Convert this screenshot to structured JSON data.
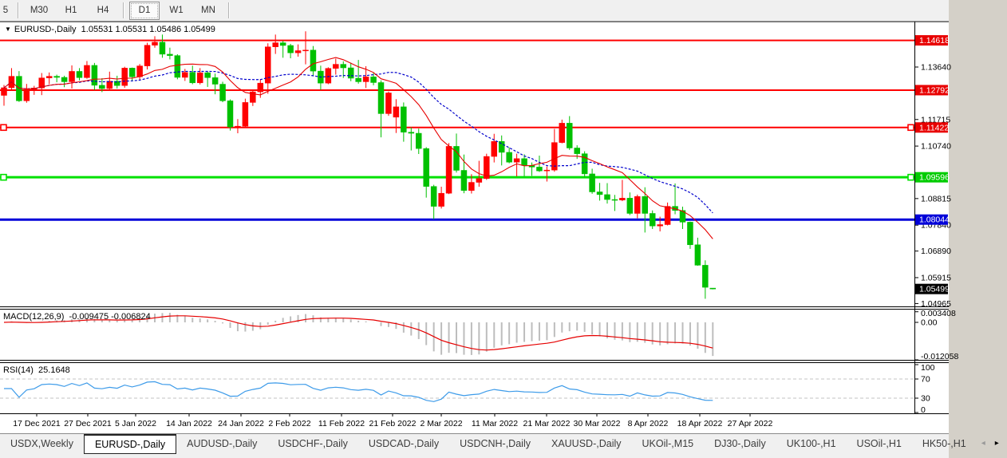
{
  "toolbar": {
    "buttons": [
      "5",
      "M30",
      "H1",
      "H4",
      "D1",
      "W1",
      "MN"
    ],
    "active": "D1",
    "separators_after": [
      "5",
      "H4",
      "MN"
    ]
  },
  "chart": {
    "title": "EURUSD-,Daily",
    "ohlc_text": "1.05531 1.05531 1.05486 1.05499"
  },
  "macd_panel": {
    "label": "MACD(12,26,9)",
    "values_text": "-0.009475 -0.006824",
    "axis_labels": [
      {
        "text": "0.003408",
        "value": 0.003408
      },
      {
        "text": "0.00",
        "value": 0.0
      },
      {
        "text": "-0.012058",
        "value": -0.012058
      }
    ]
  },
  "rsi_panel": {
    "label": "RSI(14)",
    "value_text": "25.1648",
    "axis_labels": [
      {
        "text": "100",
        "value": 100
      },
      {
        "text": "70",
        "value": 70
      },
      {
        "text": "30",
        "value": 30
      },
      {
        "text": "0",
        "value": 0
      }
    ],
    "dashed_levels": [
      70,
      30
    ]
  },
  "price_axis": {
    "plain_ticks": [
      "1.13640",
      "1.11715",
      "1.10740",
      "1.08815",
      "1.07840",
      "1.06890",
      "1.05915",
      "1.04965"
    ],
    "current_price": {
      "text": "1.05499",
      "value": 1.05499,
      "bg": "#000000",
      "fg": "#ffffff"
    }
  },
  "time_axis": {
    "ticks": [
      {
        "label": "17 Dec 2021",
        "x": 46
      },
      {
        "label": "27 Dec 2021",
        "x": 110
      },
      {
        "label": "5 Jan 2022",
        "x": 170
      },
      {
        "label": "14 Jan 2022",
        "x": 237
      },
      {
        "label": "24 Jan 2022",
        "x": 302
      },
      {
        "label": "2 Feb 2022",
        "x": 363
      },
      {
        "label": "11 Feb 2022",
        "x": 428
      },
      {
        "label": "21 Feb 2022",
        "x": 492
      },
      {
        "label": "2 Mar 2022",
        "x": 553
      },
      {
        "label": "11 Mar 2022",
        "x": 620
      },
      {
        "label": "21 Mar 2022",
        "x": 685
      },
      {
        "label": "30 Mar 2022",
        "x": 748
      },
      {
        "label": "8 Apr 2022",
        "x": 812
      },
      {
        "label": "18 Apr 2022",
        "x": 877
      },
      {
        "label": "27 Apr 2022",
        "x": 940
      }
    ]
  },
  "tabs": {
    "items": [
      "USDX,Weekly",
      "EURUSD-,Daily",
      "AUDUSD-,Daily",
      "USDCHF-,Daily",
      "USDCAD-,Daily",
      "USDCNH-,Daily",
      "XAUUSD-,Daily",
      "UKOil-,M15",
      "DJ30-,Daily",
      "UK100-,H1",
      "USOil-,H1",
      "HK50-,H1"
    ],
    "active": "EURUSD-,Daily",
    "scroll_left_arrow": "◂",
    "scroll_right_arrow": "▸"
  },
  "chart_data": {
    "type": "candlestick",
    "symbol": "EURUSD-",
    "timeframe": "Daily",
    "y_range": [
      1.049,
      1.1522
    ],
    "grid": false,
    "colors": {
      "up": "#ff0000",
      "down": "#00c000",
      "ma_fast": "#e60000",
      "ma_slow": "#0000cc",
      "macd_hist": "#bdbdbd",
      "macd_signal": "#e60000",
      "rsi_line": "#3d9be9",
      "axis_text": "#000000"
    },
    "overlays": [
      {
        "name": "ma-fast",
        "type": "sma",
        "period": 10,
        "color": "#e60000",
        "style": "solid"
      },
      {
        "name": "ma-slow",
        "type": "sma",
        "period": 20,
        "color": "#0000cc",
        "style": "dashed"
      }
    ],
    "levels": [
      {
        "value": 1.14618,
        "text": "1.14618",
        "color": "#ff0000",
        "width": 2,
        "label_bg": "#e80000",
        "handles": false
      },
      {
        "value": 1.12792,
        "text": "1.12792",
        "color": "#ff0000",
        "width": 2,
        "label_bg": "#e80000",
        "handles": false
      },
      {
        "value": 1.11422,
        "text": "1.11422",
        "color": "#ff0000",
        "width": 2,
        "label_bg": "#e80000",
        "handles": true
      },
      {
        "value": 1.09596,
        "text": "1.09596",
        "color": "#00e100",
        "width": 3,
        "label_bg": "#00cc00",
        "handles": true
      },
      {
        "value": 1.08044,
        "text": "1.08044",
        "color": "#0000d9",
        "width": 3,
        "label_bg": "#0000d9",
        "handles": false
      }
    ],
    "indicators": [
      {
        "type": "macd",
        "fast": 12,
        "slow": 26,
        "signal": 9,
        "last_main": -0.009475,
        "last_signal": -0.006824
      },
      {
        "type": "rsi",
        "period": 14,
        "last_value": 25.1648
      }
    ],
    "ohlc": [
      [
        1.126,
        1.1298,
        1.1222,
        1.1288
      ],
      [
        1.1288,
        1.136,
        1.1279,
        1.133
      ],
      [
        1.133,
        1.1349,
        1.1236,
        1.124
      ],
      [
        1.124,
        1.1302,
        1.1233,
        1.1278
      ],
      [
        1.1278,
        1.1295,
        1.1262,
        1.1287
      ],
      [
        1.1287,
        1.1342,
        1.1261,
        1.1324
      ],
      [
        1.1324,
        1.1344,
        1.1301,
        1.133
      ],
      [
        1.133,
        1.1336,
        1.1308,
        1.1326
      ],
      [
        1.1326,
        1.1332,
        1.129,
        1.131
      ],
      [
        1.131,
        1.137,
        1.1285,
        1.1348
      ],
      [
        1.1348,
        1.136,
        1.1315,
        1.1325
      ],
      [
        1.1325,
        1.1386,
        1.1321,
        1.137
      ],
      [
        1.137,
        1.1379,
        1.1279,
        1.1297
      ],
      [
        1.1297,
        1.1323,
        1.1272,
        1.1285
      ],
      [
        1.1285,
        1.1347,
        1.1278,
        1.1312
      ],
      [
        1.1312,
        1.1332,
        1.1285,
        1.1296
      ],
      [
        1.1296,
        1.1365,
        1.1288,
        1.136
      ],
      [
        1.136,
        1.1362,
        1.1313,
        1.1328
      ],
      [
        1.1328,
        1.1375,
        1.1314,
        1.1368
      ],
      [
        1.1368,
        1.1453,
        1.1355,
        1.1444
      ],
      [
        1.1444,
        1.1477,
        1.1435,
        1.1455
      ],
      [
        1.1455,
        1.1483,
        1.1398,
        1.1411
      ],
      [
        1.1411,
        1.1435,
        1.1392,
        1.1406
      ],
      [
        1.1406,
        1.1411,
        1.1319,
        1.1326
      ],
      [
        1.1326,
        1.1357,
        1.1313,
        1.1344
      ],
      [
        1.1344,
        1.1369,
        1.1301,
        1.1306
      ],
      [
        1.1306,
        1.136,
        1.13,
        1.1343
      ],
      [
        1.1343,
        1.1349,
        1.1291,
        1.1325
      ],
      [
        1.1325,
        1.134,
        1.1264,
        1.1301
      ],
      [
        1.1301,
        1.131,
        1.1235,
        1.124
      ],
      [
        1.124,
        1.1245,
        1.1131,
        1.1144
      ],
      [
        1.1144,
        1.1173,
        1.1121,
        1.1147
      ],
      [
        1.1147,
        1.1248,
        1.1141,
        1.1234
      ],
      [
        1.1234,
        1.1279,
        1.1221,
        1.1273
      ],
      [
        1.1273,
        1.132,
        1.1251,
        1.1305
      ],
      [
        1.1305,
        1.1451,
        1.1266,
        1.1438
      ],
      [
        1.1438,
        1.1483,
        1.1412,
        1.1453
      ],
      [
        1.1453,
        1.146,
        1.1398,
        1.1443
      ],
      [
        1.1443,
        1.1449,
        1.1396,
        1.1416
      ],
      [
        1.1416,
        1.1447,
        1.1402,
        1.1424
      ],
      [
        1.1424,
        1.1495,
        1.1374,
        1.1426
      ],
      [
        1.1426,
        1.1441,
        1.133,
        1.1349
      ],
      [
        1.1349,
        1.1369,
        1.128,
        1.1305
      ],
      [
        1.1305,
        1.1363,
        1.1301,
        1.1359
      ],
      [
        1.1359,
        1.1395,
        1.1336,
        1.1374
      ],
      [
        1.1374,
        1.1385,
        1.1324,
        1.1361
      ],
      [
        1.1361,
        1.138,
        1.1312,
        1.1323
      ],
      [
        1.1323,
        1.139,
        1.1303,
        1.131
      ],
      [
        1.131,
        1.1367,
        1.1287,
        1.1328
      ],
      [
        1.1328,
        1.1343,
        1.1297,
        1.1307
      ],
      [
        1.1307,
        1.1315,
        1.1106,
        1.1193
      ],
      [
        1.1193,
        1.1274,
        1.1185,
        1.1269
      ],
      [
        1.118,
        1.1246,
        1.1122,
        1.1218
      ],
      [
        1.1218,
        1.1234,
        1.109,
        1.1125
      ],
      [
        1.1125,
        1.1143,
        1.1058,
        1.1121
      ],
      [
        1.1121,
        1.1138,
        1.1045,
        1.1065
      ],
      [
        1.1065,
        1.107,
        1.0885,
        1.0926
      ],
      [
        1.0926,
        1.0932,
        1.0806,
        1.0853
      ],
      [
        1.0853,
        1.0925,
        1.0845,
        1.0901
      ],
      [
        1.0901,
        1.1085,
        1.0898,
        1.1073
      ],
      [
        1.1073,
        1.112,
        1.0977,
        1.0985
      ],
      [
        1.0985,
        1.1043,
        1.0901,
        1.0911
      ],
      [
        1.0911,
        1.0971,
        1.09,
        1.0941
      ],
      [
        1.0941,
        1.102,
        1.0925,
        1.0955
      ],
      [
        1.0955,
        1.1046,
        1.095,
        1.1036
      ],
      [
        1.1036,
        1.1119,
        1.1014,
        1.1091
      ],
      [
        1.1091,
        1.1113,
        1.1003,
        1.1051
      ],
      [
        1.1051,
        1.1069,
        1.1011,
        1.1015
      ],
      [
        1.1015,
        1.1046,
        1.0963,
        1.1028
      ],
      [
        1.1028,
        1.1044,
        1.0963,
        1.1003
      ],
      [
        1.1003,
        1.1014,
        1.0965,
        1.0997
      ],
      [
        1.0997,
        1.1039,
        1.0979,
        1.0983
      ],
      [
        1.0983,
        1.0999,
        1.0944,
        1.0986
      ],
      [
        1.0986,
        1.1137,
        1.098,
        1.1087
      ],
      [
        1.1087,
        1.1171,
        1.1084,
        1.1158
      ],
      [
        1.1158,
        1.1184,
        1.106,
        1.1067
      ],
      [
        1.1067,
        1.1077,
        1.1027,
        1.1046
      ],
      [
        1.1046,
        1.1055,
        1.096,
        1.0972
      ],
      [
        1.0972,
        1.0991,
        1.0899,
        1.0906
      ],
      [
        1.0906,
        1.0939,
        1.0874,
        1.0896
      ],
      [
        1.0896,
        1.0938,
        1.0863,
        1.0878
      ],
      [
        1.0878,
        1.0895,
        1.0836,
        1.0876
      ],
      [
        1.0876,
        1.095,
        1.0872,
        1.0883
      ],
      [
        1.0883,
        1.0904,
        1.0821,
        1.0827
      ],
      [
        1.0827,
        1.0896,
        1.0809,
        1.0889
      ],
      [
        1.0889,
        1.0923,
        1.0757,
        1.0827
      ],
      [
        1.0827,
        1.0838,
        1.077,
        1.0781
      ],
      [
        1.0781,
        1.0815,
        1.0761,
        1.0786
      ],
      [
        1.0786,
        1.0867,
        1.0783,
        1.0853
      ],
      [
        1.0853,
        1.0937,
        1.0824,
        1.0838
      ],
      [
        1.0838,
        1.0852,
        1.077,
        1.0795
      ],
      [
        1.0795,
        1.0797,
        1.0697,
        1.0712
      ],
      [
        1.0712,
        1.0738,
        1.0635,
        1.0637
      ],
      [
        1.0637,
        1.0655,
        1.0514,
        1.0556
      ],
      [
        1.05531,
        1.05531,
        1.05486,
        1.05499
      ]
    ]
  }
}
